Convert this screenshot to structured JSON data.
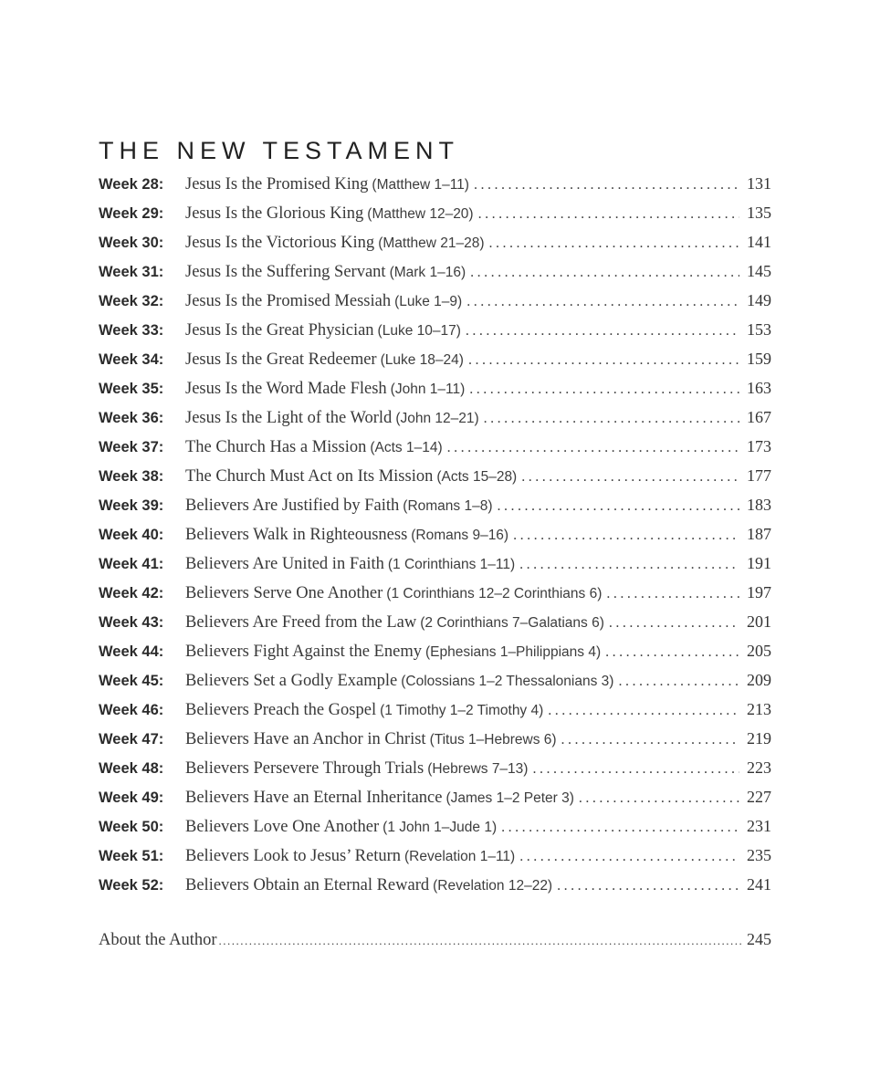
{
  "section_title": "THE NEW TESTAMENT",
  "colors": {
    "text": "#383838",
    "title": "#212121",
    "background": "#ffffff"
  },
  "toc": {
    "entries": [
      {
        "week_label": "Week 28:",
        "title": "Jesus Is the Promised King",
        "reference": "(Matthew 1–11)",
        "page": "131"
      },
      {
        "week_label": "Week 29:",
        "title": "Jesus Is the Glorious King",
        "reference": "(Matthew 12–20)",
        "page": "135"
      },
      {
        "week_label": "Week 30:",
        "title": "Jesus Is the Victorious King",
        "reference": "(Matthew 21–28)",
        "page": "141"
      },
      {
        "week_label": "Week 31:",
        "title": "Jesus Is the Suffering Servant",
        "reference": "(Mark 1–16)",
        "page": "145"
      },
      {
        "week_label": "Week 32:",
        "title": "Jesus Is the Promised Messiah",
        "reference": "(Luke 1–9)",
        "page": "149"
      },
      {
        "week_label": "Week 33:",
        "title": "Jesus Is the Great Physician",
        "reference": "(Luke 10–17)",
        "page": "153"
      },
      {
        "week_label": "Week 34:",
        "title": "Jesus Is the Great Redeemer",
        "reference": "(Luke 18–24)",
        "page": "159"
      },
      {
        "week_label": "Week 35:",
        "title": "Jesus Is the Word Made Flesh",
        "reference": "(John 1–11)",
        "page": "163"
      },
      {
        "week_label": "Week 36:",
        "title": "Jesus Is the Light of the World",
        "reference": "(John 12–21)",
        "page": "167"
      },
      {
        "week_label": "Week 37:",
        "title": "The Church Has a Mission",
        "reference": "(Acts 1–14)",
        "page": "173"
      },
      {
        "week_label": "Week 38:",
        "title": "The Church Must Act on Its Mission",
        "reference": "(Acts 15–28)",
        "page": "177"
      },
      {
        "week_label": "Week 39:",
        "title": "Believers Are Justified by Faith",
        "reference": "(Romans 1–8)",
        "page": "183"
      },
      {
        "week_label": "Week 40:",
        "title": "Believers Walk in Righteousness",
        "reference": "(Romans 9–16)",
        "page": "187"
      },
      {
        "week_label": "Week 41:",
        "title": "Believers Are United in Faith",
        "reference": "(1 Corinthians 1–11)",
        "page": "191"
      },
      {
        "week_label": "Week 42:",
        "title": "Believers Serve One Another",
        "reference": "(1 Corinthians 12–2 Corinthians 6)",
        "page": "197"
      },
      {
        "week_label": "Week 43:",
        "title": "Believers Are Freed from the Law",
        "reference": "(2 Corinthians 7–Galatians 6)",
        "page": "201"
      },
      {
        "week_label": "Week 44:",
        "title": "Believers Fight Against the Enemy",
        "reference": "(Ephesians 1–Philippians 4)",
        "page": "205"
      },
      {
        "week_label": "Week 45:",
        "title": "Believers Set a Godly Example",
        "reference": "(Colossians 1–2 Thessalonians 3)",
        "page": "209"
      },
      {
        "week_label": "Week 46:",
        "title": "Believers Preach the Gospel",
        "reference": "(1 Timothy 1–2 Timothy 4)",
        "page": "213"
      },
      {
        "week_label": "Week 47:",
        "title": "Believers Have an Anchor in Christ",
        "reference": "(Titus 1–Hebrews 6)",
        "page": "219"
      },
      {
        "week_label": "Week 48:",
        "title": "Believers Persevere Through Trials",
        "reference": "(Hebrews 7–13)",
        "page": "223"
      },
      {
        "week_label": "Week 49:",
        "title": "Believers Have an Eternal Inheritance",
        "reference": "(James 1–2 Peter 3)",
        "page": "227"
      },
      {
        "week_label": "Week 50:",
        "title": "Believers Love One Another",
        "reference": "(1 John 1–Jude 1)",
        "page": "231"
      },
      {
        "week_label": "Week 51:",
        "title": "Believers Look to Jesus’ Return",
        "reference": "(Revelation 1–11)",
        "page": "235"
      },
      {
        "week_label": "Week 52:",
        "title": "Believers Obtain an Eternal Reward",
        "reference": "(Revelation 12–22)",
        "page": "241"
      }
    ]
  },
  "about": {
    "label": "About the Author",
    "page": "245"
  }
}
